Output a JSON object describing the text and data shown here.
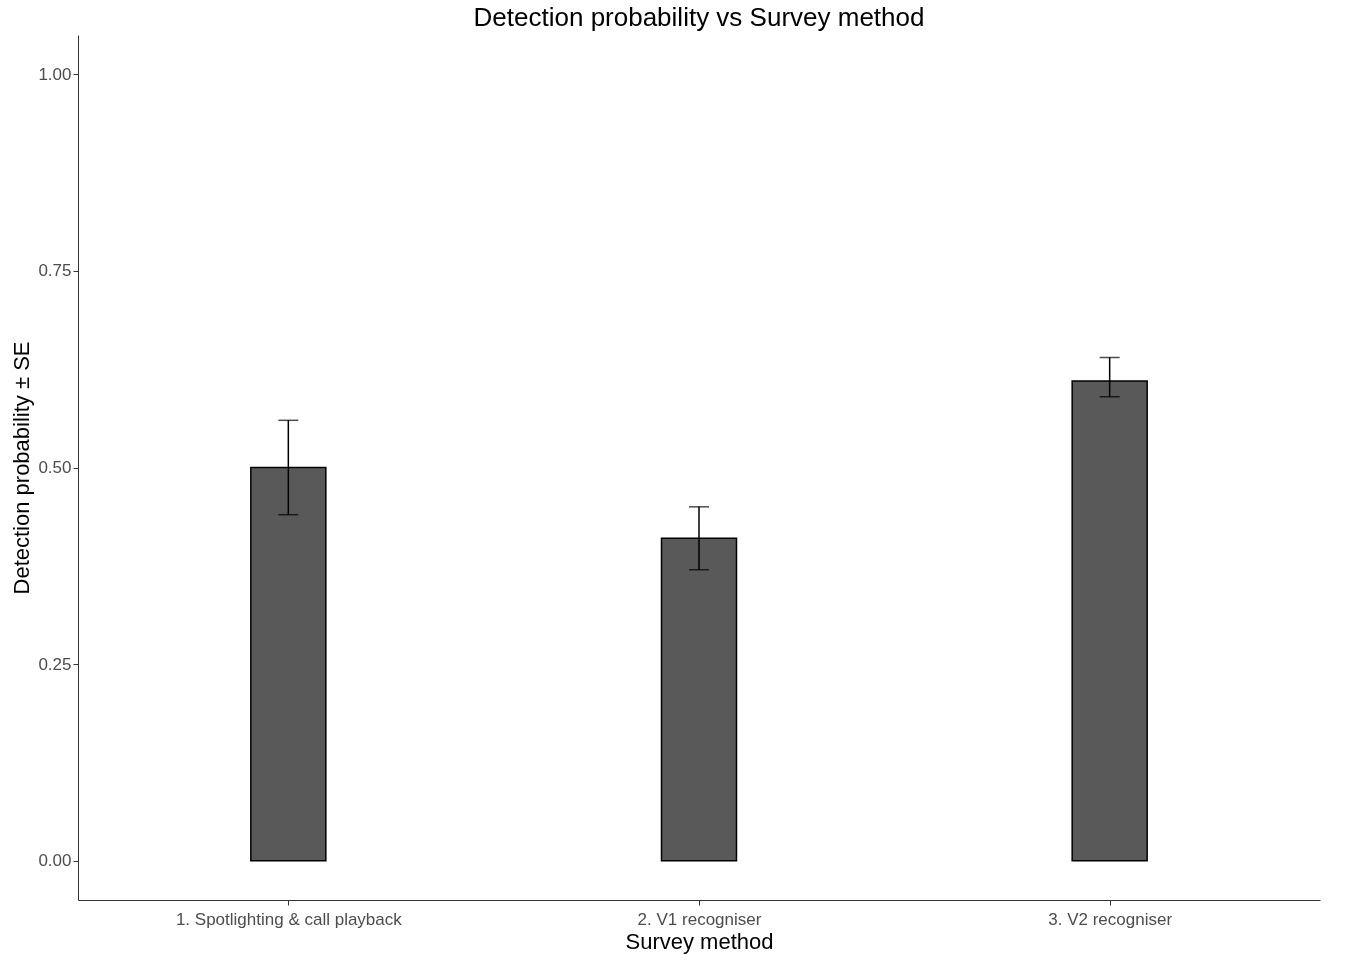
{
  "chart_data": {
    "type": "bar",
    "title": "Detection probability vs Survey method",
    "xlabel": "Survey method",
    "ylabel": "Detection probability ± SE",
    "categories": [
      "1. Spotlighting & call playback",
      "2. V1 recogniser",
      "3. V2 recogniser"
    ],
    "values": [
      0.5,
      0.41,
      0.61
    ],
    "errors": [
      [
        0.44,
        0.56
      ],
      [
        0.37,
        0.45
      ],
      [
        0.59,
        0.64
      ]
    ],
    "color": "#595959",
    "ylim": [
      -0.05,
      1.05
    ],
    "yticks": [
      {
        "value": 0,
        "label": "0.00"
      },
      {
        "value": 0.25,
        "label": "0.25"
      },
      {
        "value": 0.5,
        "label": "0.50"
      },
      {
        "value": 0.75,
        "label": "0.75"
      },
      {
        "value": 1,
        "label": "1.00"
      }
    ],
    "grid": false
  }
}
